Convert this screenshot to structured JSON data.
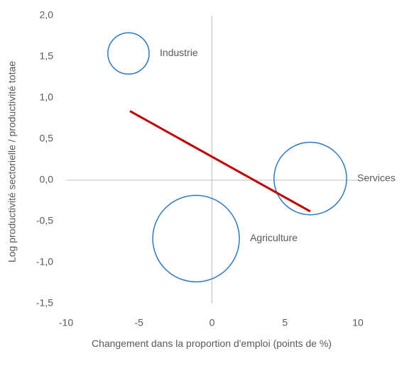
{
  "chart_data": {
    "type": "bubble",
    "x_label": "Changement dans la proportion d'emploi (points de %)",
    "y_label": "Log productivité sectorielle / productivité totae",
    "points": [
      {
        "label": "Industrie",
        "x": -5.72,
        "y": 1.54,
        "size": 8.4
      },
      {
        "label": "Services",
        "x": 6.74,
        "y": 0.02,
        "size": 26
      },
      {
        "label": "Agriculture",
        "x": -1.09,
        "y": -0.71,
        "size": 37
      }
    ],
    "bubble_color": "#2f78bd",
    "trendline": {
      "x": [
        -5.62,
        6.74
      ],
      "values": [
        0.84,
        -0.38
      ],
      "color": "#c00000"
    },
    "xlim": [
      -10,
      10
    ],
    "xticks": [
      -10,
      -5,
      0,
      5,
      10
    ],
    "ylim": [
      -1.5,
      2
    ],
    "yticks": [
      {
        "value": -1.5,
        "label": "-1,5"
      },
      {
        "value": -1,
        "label": "-1,0"
      },
      {
        "value": -0.5,
        "label": "-0,5"
      },
      {
        "value": 0,
        "label": "0,0"
      },
      {
        "value": 0.5,
        "label": "0,5"
      },
      {
        "value": 1,
        "label": "1,0"
      },
      {
        "value": 1.5,
        "label": "1,5"
      },
      {
        "value": 2,
        "label": "2,0"
      }
    ]
  }
}
